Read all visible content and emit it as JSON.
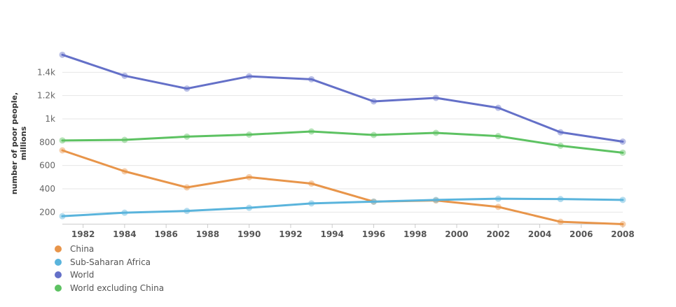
{
  "chart_data": {
    "type": "line",
    "title": "",
    "xlabel": "",
    "ylabel": "number of poor people, millions",
    "x": [
      1981,
      1984,
      1987,
      1990,
      1993,
      1996,
      1999,
      2002,
      2005,
      2008
    ],
    "xlim": [
      1981,
      2008
    ],
    "ylim": [
      100,
      1600
    ],
    "x_ticks": [
      1982,
      1984,
      1986,
      1988,
      1990,
      1992,
      1994,
      1996,
      1998,
      2000,
      2002,
      2004,
      2006,
      2008
    ],
    "y_ticks": [
      200,
      400,
      600,
      800,
      1000,
      1200,
      1400
    ],
    "y_tick_labels": [
      "200",
      "400",
      "600",
      "800",
      "1k",
      "1.2k",
      "1.4k"
    ],
    "grid": true,
    "legend_position": "bottom-left",
    "series": [
      {
        "name": "China",
        "color": "#e8954a",
        "values": [
          730,
          550,
          412,
          500,
          445,
          290,
          300,
          245,
          117,
          97
        ]
      },
      {
        "name": "Sub-Saharan Africa",
        "color": "#5ab4dc",
        "values": [
          165,
          195,
          210,
          237,
          275,
          290,
          305,
          315,
          312,
          305
        ]
      },
      {
        "name": "World",
        "color": "#6470c8",
        "values": [
          1550,
          1370,
          1260,
          1365,
          1340,
          1150,
          1180,
          1095,
          885,
          805
        ]
      },
      {
        "name": "World excluding China",
        "color": "#5dc262",
        "values": [
          815,
          820,
          848,
          865,
          892,
          862,
          880,
          852,
          770,
          710
        ]
      }
    ]
  }
}
